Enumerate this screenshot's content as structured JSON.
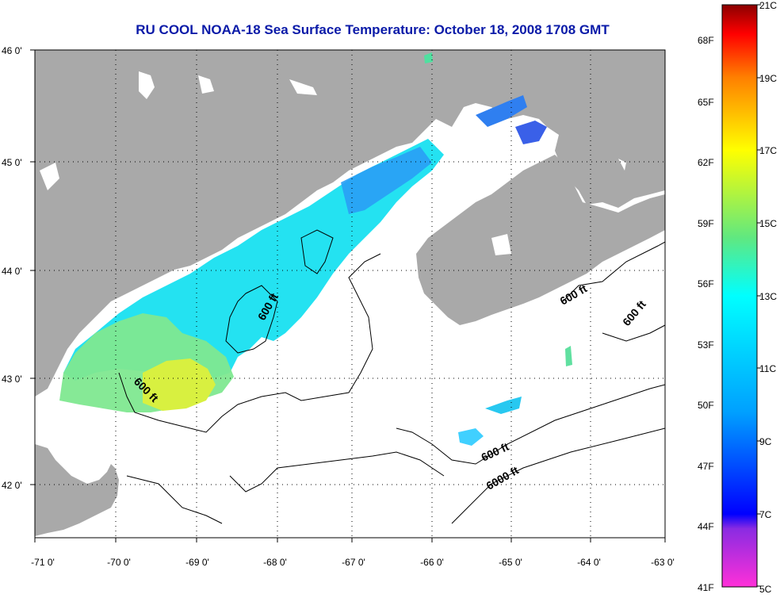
{
  "title": "RU COOL  NOAA-18  Sea Surface Temperature:  October 18, 2008 1708 GMT",
  "lon_ticks": [
    "-71 0'",
    "-70 0'",
    "-69 0'",
    "-68 0'",
    "-67 0'",
    "-66 0'",
    "-65 0'",
    "-64 0'",
    "-63 0'"
  ],
  "lat_ticks": [
    "46 0'",
    "45 0'",
    "44 0'",
    "43 0'",
    "42 0'"
  ],
  "contour_labels": [
    "600 ft",
    "600 ft",
    "600 ft",
    "600 ft",
    "600 ft",
    "6000 ft"
  ],
  "colorbar": {
    "celsius": [
      "21C",
      "19C",
      "17C",
      "15C",
      "13C",
      "11C",
      "9C",
      "7C",
      "5C"
    ],
    "fahrenheit": [
      "68F",
      "65F",
      "62F",
      "59F",
      "56F",
      "53F",
      "50F",
      "47F",
      "44F",
      "41F"
    ]
  },
  "colors": {
    "land": "#a9a9a9",
    "ocean_nodata": "#ffffff",
    "title": "#0a1aa8"
  }
}
